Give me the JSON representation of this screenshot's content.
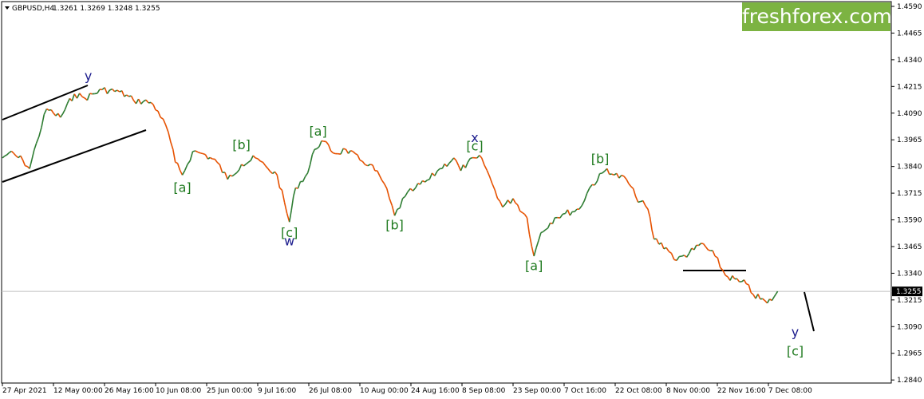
{
  "header": {
    "symbol": "GBPUSD,H4",
    "ohlc": "1.3261 1.3269 1.3248 1.3255"
  },
  "logo": "freshforex.com",
  "chart_data": {
    "type": "candlestick-line",
    "y_ticks": [
      "1.4590",
      "1.4465",
      "1.4340",
      "1.4215",
      "1.4090",
      "1.3965",
      "1.3840",
      "1.3715",
      "1.3590",
      "1.3465",
      "1.3340",
      "1.3215",
      "1.3090",
      "1.2965",
      "1.2840"
    ],
    "x_ticks": [
      "27 Apr 2021",
      "12 May 00:00",
      "26 May 16:00",
      "10 Jun 08:00",
      "25 Jun 00:00",
      "9 Jul 16:00",
      "26 Jul 08:00",
      "10 Aug 00:00",
      "24 Aug 16:00",
      "8 Sep 08:00",
      "23 Sep 00:00",
      "7 Oct 16:00",
      "22 Oct 08:00",
      "8 Nov 00:00",
      "22 Nov 16:00",
      "7 Dec 08:00"
    ],
    "ylim": [
      1.2815,
      1.461
    ],
    "current_price": "1.3255",
    "price_path": [
      {
        "date": "27 Apr 2021",
        "price": 1.388
      },
      {
        "date": "29 Apr 2021",
        "price": 1.3905
      },
      {
        "date": "3 May 2021",
        "price": 1.387
      },
      {
        "date": "5 May 2021",
        "price": 1.383
      },
      {
        "date": "7 May 2021",
        "price": 1.395
      },
      {
        "date": "10 May 2021",
        "price": 1.411
      },
      {
        "date": "12 May 2021",
        "price": 1.409
      },
      {
        "date": "14 May 2021",
        "price": 1.407
      },
      {
        "date": "18 May 2021",
        "price": 1.418
      },
      {
        "date": "21 May 2021",
        "price": 1.416
      },
      {
        "date": "26 May 2021",
        "price": 1.42
      },
      {
        "date": "31 May 2021",
        "price": 1.419
      },
      {
        "date": "4 Jun 2021",
        "price": 1.415
      },
      {
        "date": "9 Jun 2021",
        "price": 1.414
      },
      {
        "date": "11 Jun 2021",
        "price": 1.41
      },
      {
        "date": "14 Jun 2021",
        "price": 1.4
      },
      {
        "date": "16 Jun 2021",
        "price": 1.386
      },
      {
        "date": "18 Jun 2021",
        "price": 1.38
      },
      {
        "date": "21 Jun 2021",
        "price": 1.391
      },
      {
        "date": "24 Jun 2021",
        "price": 1.39
      },
      {
        "date": "28 Jun 2021",
        "price": 1.386
      },
      {
        "date": "1 Jul 2021",
        "price": 1.378
      },
      {
        "date": "5 Jul 2021",
        "price": 1.385
      },
      {
        "date": "9 Jul 2021",
        "price": 1.388
      },
      {
        "date": "13 Jul 2021",
        "price": 1.383
      },
      {
        "date": "16 Jul 2021",
        "price": 1.38
      },
      {
        "date": "20 Jul 2021",
        "price": 1.358
      },
      {
        "date": "22 Jul 2021",
        "price": 1.374
      },
      {
        "date": "26 Jul 2021",
        "price": 1.381
      },
      {
        "date": "28 Jul 2021",
        "price": 1.392
      },
      {
        "date": "30 Jul 2021",
        "price": 1.396
      },
      {
        "date": "3 Aug 2021",
        "price": 1.39
      },
      {
        "date": "6 Aug 2021",
        "price": 1.392
      },
      {
        "date": "10 Aug 2021",
        "price": 1.387
      },
      {
        "date": "13 Aug 2021",
        "price": 1.385
      },
      {
        "date": "17 Aug 2021",
        "price": 1.376
      },
      {
        "date": "20 Aug 2021",
        "price": 1.361
      },
      {
        "date": "23 Aug 2021",
        "price": 1.37
      },
      {
        "date": "26 Aug 2021",
        "price": 1.374
      },
      {
        "date": "30 Aug 2021",
        "price": 1.378
      },
      {
        "date": "2 Sep 2021",
        "price": 1.383
      },
      {
        "date": "6 Sep 2021",
        "price": 1.388
      },
      {
        "date": "8 Sep 2021",
        "price": 1.382
      },
      {
        "date": "10 Sep 2021",
        "price": 1.386
      },
      {
        "date": "14 Sep 2021",
        "price": 1.388
      },
      {
        "date": "17 Sep 2021",
        "price": 1.376
      },
      {
        "date": "20 Sep 2021",
        "price": 1.365
      },
      {
        "date": "23 Sep 2021",
        "price": 1.369
      },
      {
        "date": "27 Sep 2021",
        "price": 1.36
      },
      {
        "date": "29 Sep 2021",
        "price": 1.342
      },
      {
        "date": "1 Oct 2021",
        "price": 1.353
      },
      {
        "date": "5 Oct 2021",
        "price": 1.36
      },
      {
        "date": "8 Oct 2021",
        "price": 1.362
      },
      {
        "date": "12 Oct 2021",
        "price": 1.364
      },
      {
        "date": "15 Oct 2021",
        "price": 1.374
      },
      {
        "date": "20 Oct 2021",
        "price": 1.383
      },
      {
        "date": "22 Oct 2021",
        "price": 1.38
      },
      {
        "date": "26 Oct 2021",
        "price": 1.378
      },
      {
        "date": "29 Oct 2021",
        "price": 1.37
      },
      {
        "date": "2 Nov 2021",
        "price": 1.364
      },
      {
        "date": "4 Nov 2021",
        "price": 1.35
      },
      {
        "date": "8 Nov 2021",
        "price": 1.346
      },
      {
        "date": "11 Nov 2021",
        "price": 1.34
      },
      {
        "date": "16 Nov 2021",
        "price": 1.345
      },
      {
        "date": "18 Nov 2021",
        "price": 1.348
      },
      {
        "date": "22 Nov 2021",
        "price": 1.342
      },
      {
        "date": "25 Nov 2021",
        "price": 1.333
      },
      {
        "date": "29 Nov 2021",
        "price": 1.33
      },
      {
        "date": "1 Dec 2021",
        "price": 1.329
      },
      {
        "date": "3 Dec 2021",
        "price": 1.324
      },
      {
        "date": "7 Dec 2021",
        "price": 1.32
      },
      {
        "date": "9 Dec 2021",
        "price": 1.323
      },
      {
        "date": "10 Dec 2021",
        "price": 1.3255
      }
    ],
    "wave_labels": [
      {
        "text": "y",
        "color": "blue",
        "date": "22 May 2021",
        "price": 1.4245
      },
      {
        "text": "[a]",
        "color": "green",
        "date": "18 Jun 2021",
        "price": 1.372
      },
      {
        "text": "[b]",
        "color": "green",
        "date": "5 Jul 2021",
        "price": 1.392
      },
      {
        "text": "[c]",
        "color": "green",
        "date": "20 Jul 2021",
        "price": 1.351
      },
      {
        "text": "w",
        "color": "blue",
        "date": "20 Jul 2021",
        "price": 1.347
      },
      {
        "text": "[a]",
        "color": "green",
        "date": "29 Jul 2021",
        "price": 1.3985
      },
      {
        "text": "[b]",
        "color": "green",
        "date": "20 Aug 2021",
        "price": 1.3545
      },
      {
        "text": "x",
        "color": "blue",
        "date": "12 Sep 2021",
        "price": 1.3955
      },
      {
        "text": "[c]",
        "color": "green",
        "date": "12 Sep 2021",
        "price": 1.3915
      },
      {
        "text": "[a]",
        "color": "green",
        "date": "29 Sep 2021",
        "price": 1.3355
      },
      {
        "text": "[b]",
        "color": "green",
        "date": "18 Oct 2021",
        "price": 1.3855
      },
      {
        "text": "y",
        "color": "blue",
        "date": "15 Dec 2021",
        "price": 1.3045
      },
      {
        "text": "[c]",
        "color": "green",
        "date": "15 Dec 2021",
        "price": 1.2955
      }
    ],
    "colors": {
      "up": "#2e7d32",
      "down": "#e65100",
      "green_label": "#1f7a1f",
      "blue_label": "#1a1a8c",
      "logo_bg": "#7cb342"
    }
  }
}
